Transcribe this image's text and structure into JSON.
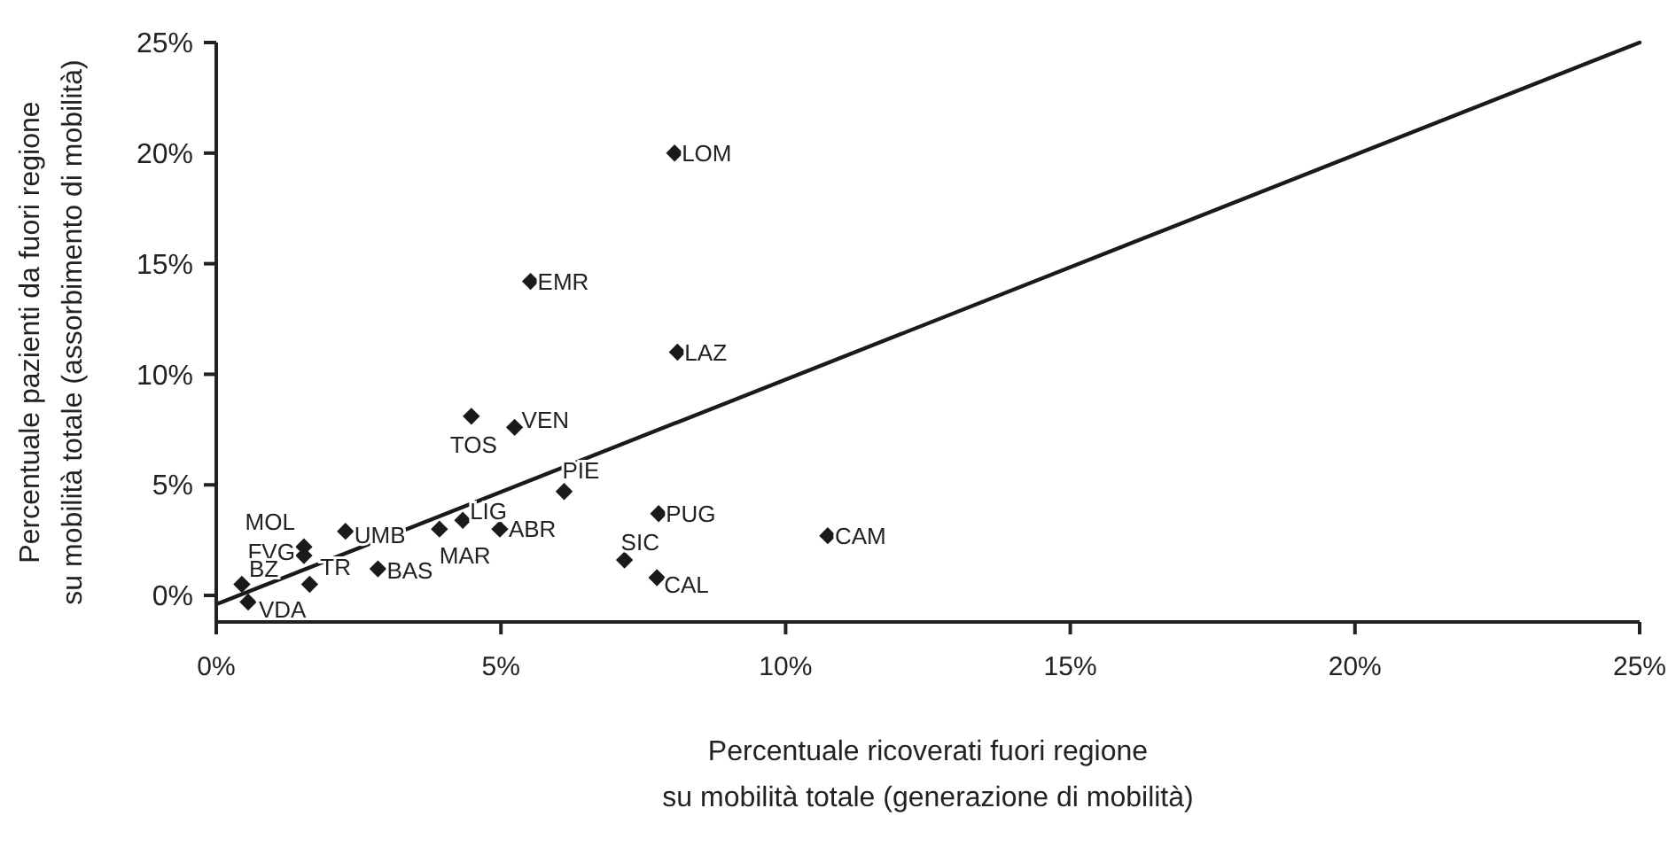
{
  "chart_data": {
    "type": "scatter",
    "xlabel": "Percentuale ricoverati fuori regione\nsu mobilità totale (generazione di mobilità)",
    "ylabel": "Percentuale pazienti da fuori regione\nsu mobilità totale (assorbimento di mobilità)",
    "xlim": [
      0,
      25
    ],
    "ylim": [
      -1.2,
      25
    ],
    "xticks": [
      {
        "value": 0,
        "label": "0%"
      },
      {
        "value": 5,
        "label": "5%"
      },
      {
        "value": 10,
        "label": "10%"
      },
      {
        "value": 15,
        "label": "15%"
      },
      {
        "value": 20,
        "label": "20%"
      },
      {
        "value": 25,
        "label": "25%"
      }
    ],
    "yticks": [
      {
        "value": 0,
        "label": "0%"
      },
      {
        "value": 5,
        "label": "5%"
      },
      {
        "value": 10,
        "label": "10%"
      },
      {
        "value": 15,
        "label": "15%"
      },
      {
        "value": 20,
        "label": "20%"
      },
      {
        "value": 25,
        "label": "25%"
      }
    ],
    "grid": false,
    "marker": "diamond",
    "series": [
      {
        "color": "#1a1a1a",
        "x": [
          8.05,
          8.1,
          7.77,
          7.17,
          7.74,
          10.74,
          5.52,
          4.48,
          5.24,
          6.11,
          4.98,
          4.33,
          3.92,
          2.27,
          2.84,
          1.54,
          1.54,
          1.64,
          0.45,
          0.56
        ],
        "values": [
          20.0,
          11.0,
          3.7,
          1.6,
          0.8,
          2.7,
          14.2,
          8.1,
          7.6,
          4.7,
          3.0,
          3.4,
          3.0,
          2.9,
          1.2,
          2.2,
          1.8,
          0.5,
          0.5,
          -0.3
        ]
      },
      {
        "type": "line",
        "color": "#1a1a1a",
        "marker": "none",
        "line_style": "solid",
        "x": [
          0,
          25
        ],
        "values": [
          -0.4,
          25
        ]
      }
    ],
    "annotations": [
      {
        "text": "LOM",
        "x": 8.05,
        "y": 20.0
      },
      {
        "text": "LAZ",
        "x": 8.1,
        "y": 11.0
      },
      {
        "text": "PUG",
        "x": 7.77,
        "y": 3.7
      },
      {
        "text": "SIC",
        "x": 7.17,
        "y": 1.6
      },
      {
        "text": "CAL",
        "x": 7.74,
        "y": 0.8
      },
      {
        "text": "CAM",
        "x": 10.74,
        "y": 2.7
      },
      {
        "text": "EMR",
        "x": 5.52,
        "y": 14.2
      },
      {
        "text": "TOS",
        "x": 4.48,
        "y": 8.1
      },
      {
        "text": "VEN",
        "x": 5.24,
        "y": 7.6
      },
      {
        "text": "PIE",
        "x": 6.11,
        "y": 4.7
      },
      {
        "text": "ABR",
        "x": 4.98,
        "y": 3.0
      },
      {
        "text": "LIG",
        "x": 4.33,
        "y": 3.4
      },
      {
        "text": "MAR",
        "x": 3.92,
        "y": 3.0
      },
      {
        "text": "UMB",
        "x": 2.27,
        "y": 2.9
      },
      {
        "text": "BAS",
        "x": 2.84,
        "y": 1.2
      },
      {
        "text": "MOL",
        "x": 1.54,
        "y": 2.2
      },
      {
        "text": "FVG",
        "x": 1.54,
        "y": 1.8
      },
      {
        "text": "TR",
        "x": 1.64,
        "y": 0.5
      },
      {
        "text": "BZ",
        "x": 0.45,
        "y": 0.5
      },
      {
        "text": "VDA",
        "x": 0.56,
        "y": -0.3
      }
    ]
  }
}
